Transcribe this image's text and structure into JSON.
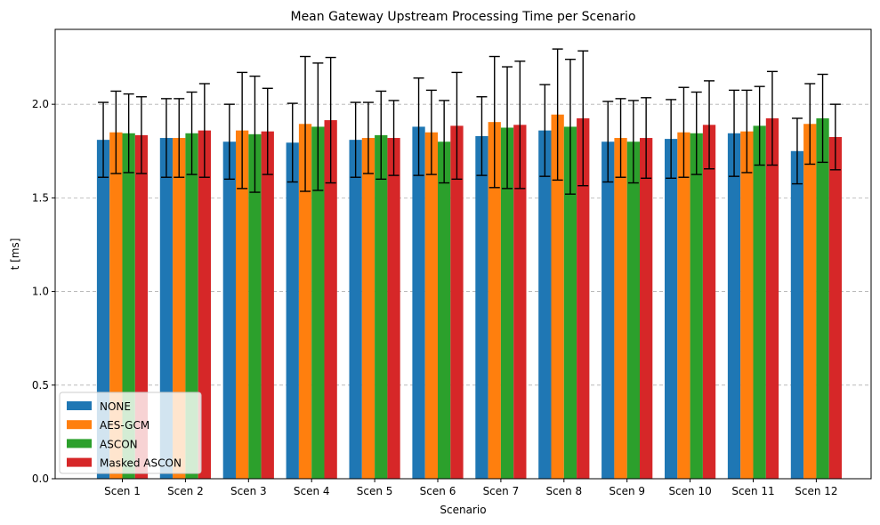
{
  "chart_data": {
    "type": "bar",
    "title": "Mean Gateway Upstream Processing Time per Scenario",
    "xlabel": "Scenario",
    "ylabel": "t [ms]",
    "ylim": [
      0,
      2.4
    ],
    "yticks": [
      "0.0",
      "0.5",
      "1.0",
      "1.5",
      "2.0"
    ],
    "grid": "y-dashed",
    "legend_position": "lower-left",
    "categories": [
      "Scen 1",
      "Scen 2",
      "Scen 3",
      "Scen 4",
      "Scen 5",
      "Scen 6",
      "Scen 7",
      "Scen 8",
      "Scen 9",
      "Scen 10",
      "Scen 11",
      "Scen 12"
    ],
    "series": [
      {
        "name": "NONE",
        "color": "#1f77b4",
        "values": [
          1.81,
          1.82,
          1.8,
          1.795,
          1.81,
          1.88,
          1.83,
          1.86,
          1.8,
          1.815,
          1.845,
          1.75
        ],
        "errors": [
          0.2,
          0.21,
          0.2,
          0.21,
          0.2,
          0.26,
          0.21,
          0.245,
          0.215,
          0.21,
          0.23,
          0.175
        ]
      },
      {
        "name": "AES-GCM",
        "color": "#ff7f0e",
        "values": [
          1.85,
          1.82,
          1.86,
          1.895,
          1.82,
          1.85,
          1.905,
          1.945,
          1.82,
          1.85,
          1.855,
          1.895
        ],
        "errors": [
          0.22,
          0.21,
          0.31,
          0.36,
          0.19,
          0.225,
          0.35,
          0.35,
          0.21,
          0.24,
          0.22,
          0.215
        ]
      },
      {
        "name": "ASCON",
        "color": "#2ca02c",
        "values": [
          1.845,
          1.845,
          1.84,
          1.88,
          1.835,
          1.8,
          1.875,
          1.88,
          1.8,
          1.845,
          1.885,
          1.925
        ],
        "errors": [
          0.21,
          0.22,
          0.31,
          0.34,
          0.235,
          0.22,
          0.325,
          0.36,
          0.22,
          0.22,
          0.21,
          0.235
        ]
      },
      {
        "name": "Masked ASCON",
        "color": "#d62728",
        "values": [
          1.835,
          1.86,
          1.855,
          1.915,
          1.82,
          1.885,
          1.89,
          1.925,
          1.82,
          1.89,
          1.925,
          1.825
        ],
        "errors": [
          0.205,
          0.25,
          0.23,
          0.335,
          0.2,
          0.285,
          0.34,
          0.36,
          0.215,
          0.235,
          0.25,
          0.175
        ]
      }
    ]
  }
}
